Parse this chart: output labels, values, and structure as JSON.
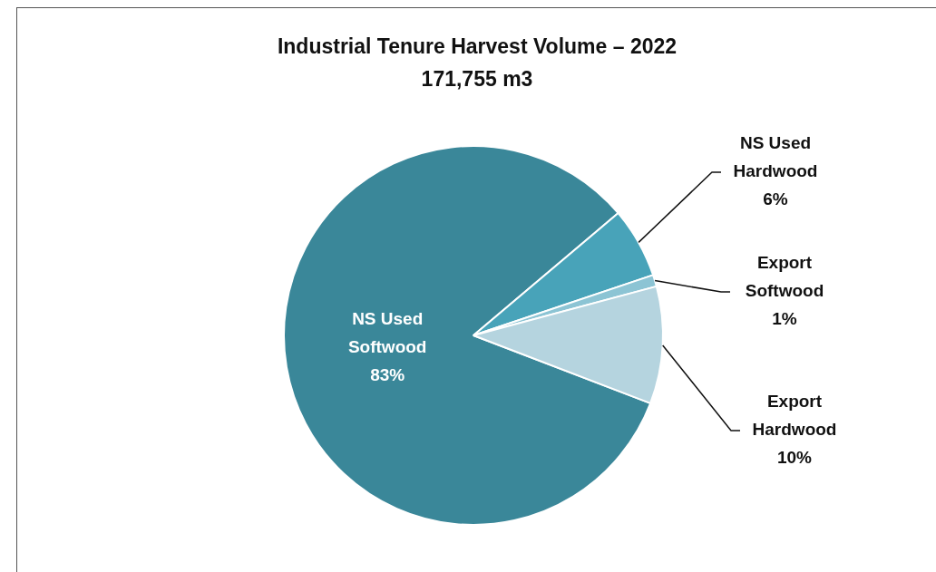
{
  "chart_data": {
    "type": "pie",
    "title": "Industrial Tenure Harvest Volume  – 2022",
    "subtitle": "171,755 m3",
    "categories": [
      "NS Used Softwood",
      "NS Used Hardwood",
      "Export Softwood",
      "Export Hardwood"
    ],
    "values": [
      83,
      6,
      1,
      10
    ],
    "colors": [
      "#3a8799",
      "#48a3b9",
      "#8cc4d4",
      "#b5d4df"
    ],
    "value_labels": [
      "83%",
      "6%",
      "1%",
      "10%"
    ],
    "legend": false
  }
}
